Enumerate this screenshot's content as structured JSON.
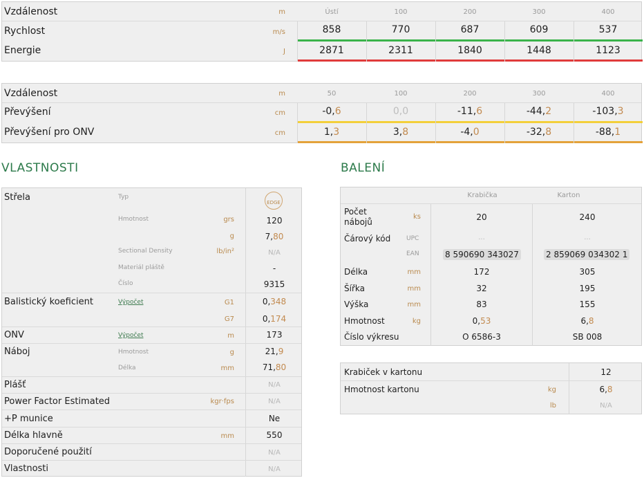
{
  "trajectory_1": {
    "header": {
      "label": "Vzdálenost",
      "unit": "m",
      "cols": [
        "Ústí",
        "100",
        "200",
        "300",
        "400"
      ]
    },
    "rows": [
      {
        "label": "Rychlost",
        "unit": "m/s",
        "values": [
          "858",
          "770",
          "687",
          "609",
          "537"
        ]
      },
      {
        "label": "Energie",
        "unit": "J",
        "values": [
          "2871",
          "2311",
          "1840",
          "1448",
          "1123"
        ]
      }
    ],
    "colors": {
      "speed_bar": "#3ab34a",
      "energy_bar": "#e03b3b"
    }
  },
  "trajectory_2": {
    "header": {
      "label": "Vzdálenost",
      "unit": "m",
      "cols": [
        "50",
        "100",
        "200",
        "300",
        "400"
      ]
    },
    "rows": [
      {
        "label": "Převýšení",
        "unit": "cm",
        "values": [
          {
            "int": "-0,",
            "dec": "6"
          },
          {
            "int": "0,0",
            "dec": ""
          },
          {
            "int": "-11,",
            "dec": "6"
          },
          {
            "int": "-44,",
            "dec": "2"
          },
          {
            "int": "-103,",
            "dec": "3"
          }
        ]
      },
      {
        "label": "Převýšení pro ONV",
        "unit": "cm",
        "values": [
          {
            "int": "1,",
            "dec": "3"
          },
          {
            "int": "3,",
            "dec": "8"
          },
          {
            "int": "-4,",
            "dec": "0"
          },
          {
            "int": "-32,",
            "dec": "8"
          },
          {
            "int": "-88,",
            "dec": "1"
          }
        ]
      }
    ],
    "colors": {
      "drop_bar": "#f3cf3a",
      "onv_bar": "#e3a23a"
    }
  },
  "properties": {
    "title": "VLASTNOSTI",
    "strela": {
      "label": "Střela",
      "typ_label": "Typ",
      "typ_badge": "EDGE",
      "hmotnost_label": "Hmotnost",
      "unit_grs": "grs",
      "val_grs": "120",
      "unit_g": "g",
      "val_g_int": "7,",
      "val_g_dec": "80",
      "sd_label": "Sectional Density",
      "sd_unit": "lb/in²",
      "sd_val": "N/A",
      "material_label": "Materiál pláště",
      "material_val": "-",
      "cislo_label": "Číslo",
      "cislo_val": "9315"
    },
    "bk": {
      "label": "Balistický koeficient",
      "link": "Výpočet",
      "g1_unit": "G1",
      "g1_int": "0,",
      "g1_dec": "348",
      "g7_unit": "G7",
      "g7_int": "0,",
      "g7_dec": "174"
    },
    "onv": {
      "label": "ONV",
      "link": "Výpočet",
      "unit": "m",
      "val": "173"
    },
    "naboj": {
      "label": "Náboj",
      "hm_label": "Hmotnost",
      "hm_unit": "g",
      "hm_int": "21,",
      "hm_dec": "9",
      "delka_label": "Délka",
      "delka_unit": "mm",
      "delka_int": "71,",
      "delka_dec": "80"
    },
    "plast": {
      "label": "Plášť",
      "val": "N/A"
    },
    "pfe": {
      "label": "Power Factor Estimated",
      "unit": "kgr·fps",
      "val": "N/A"
    },
    "pmunice": {
      "label": "+P munice",
      "val": "Ne"
    },
    "delka_hlavne": {
      "label": "Délka hlavně",
      "unit": "mm",
      "val": "550"
    },
    "doporucene": {
      "label": "Doporučené použití",
      "val": "N/A"
    },
    "vlastnosti": {
      "label": "Vlastnosti",
      "val": "N/A"
    }
  },
  "packaging": {
    "title": "BALENÍ",
    "col_headers": [
      "Krabička",
      "Karton"
    ],
    "pocet": {
      "label_l1": "Počet",
      "label_l2": "nábojů",
      "unit": "ks",
      "box": "20",
      "carton": "240"
    },
    "carovy": {
      "label": "Čárový kód",
      "upc_label": "UPC",
      "upc_box": "...",
      "upc_carton": "...",
      "ean_label": "EAN",
      "ean_box": "8 590690 343027",
      "ean_carton": "2 859069 034302 1"
    },
    "delka": {
      "label": "Délka",
      "unit": "mm",
      "box": "172",
      "carton": "305"
    },
    "sirka": {
      "label": "Šířka",
      "unit": "mm",
      "box": "32",
      "carton": "195"
    },
    "vyska": {
      "label": "Výška",
      "unit": "mm",
      "box": "83",
      "carton": "155"
    },
    "hmotnost": {
      "label": "Hmotnost",
      "unit": "kg",
      "box_int": "0,",
      "box_dec": "53",
      "carton_int": "6,",
      "carton_dec": "8"
    },
    "cislo": {
      "label": "Číslo výkresu",
      "box": "O 6586-3",
      "carton": "SB 008"
    }
  },
  "carton": {
    "krabicek": {
      "label": "Krabiček v kartonu",
      "val": "12"
    },
    "hmotnost": {
      "label": "Hmotnost kartonu",
      "unit_kg": "kg",
      "val_int": "6,",
      "val_dec": "8",
      "unit_lb": "lb",
      "val_lb": "N/A"
    }
  }
}
